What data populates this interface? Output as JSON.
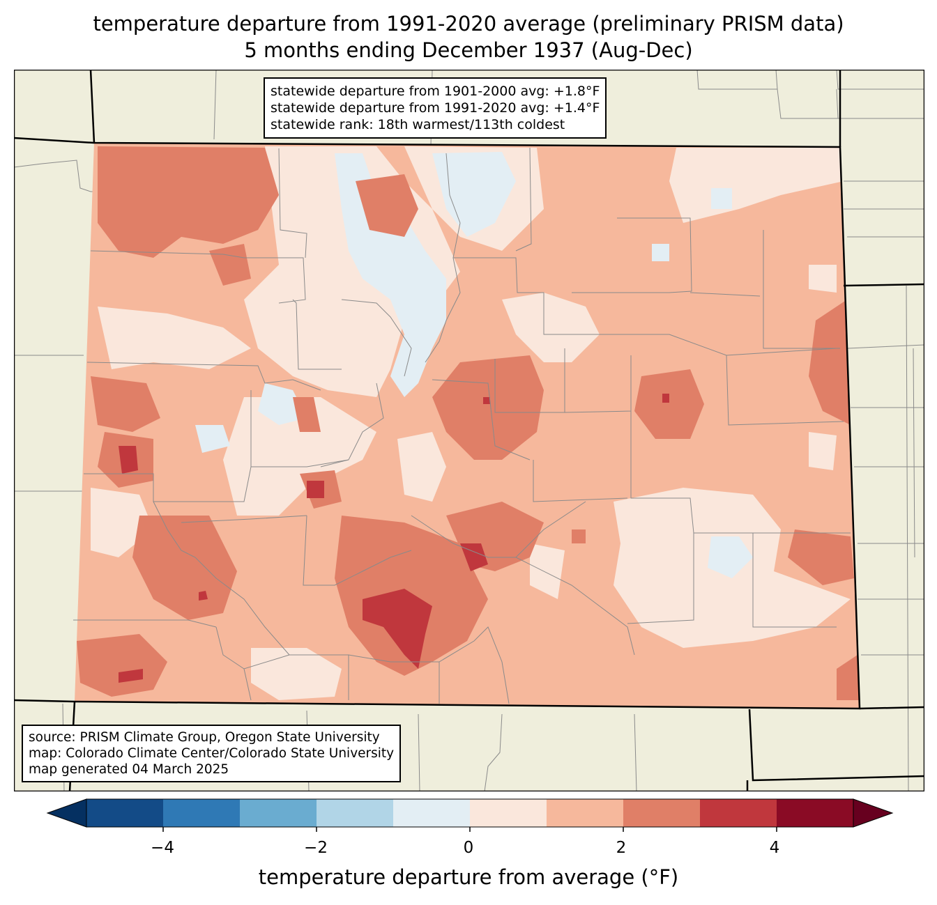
{
  "title_line1": "temperature departure from 1991-2020 average (preliminary PRISM data)",
  "title_line2": "5 months ending December 1937 (Aug-Dec)",
  "stats": {
    "line1": "statewide departure from 1901-2000 avg: +1.8°F",
    "line2": "statewide departure from 1991-2020 avg: +1.4°F",
    "line3": "statewide rank: 18th warmest/113th coldest"
  },
  "source": {
    "line1": "source: PRISM Climate Group, Oregon State University",
    "line2": "map: Colorado Climate Center/Colorado State University",
    "line3": "map generated 04 March 2025"
  },
  "colorbar": {
    "label": "temperature departure from average (°F)",
    "ticks": [
      "−4",
      "−2",
      "0",
      "2",
      "4"
    ],
    "bins": [
      {
        "range": "<-5",
        "color": "#053061"
      },
      {
        "range": "-5 to -4",
        "color": "#134b87"
      },
      {
        "range": "-4 to -3",
        "color": "#2f79b5"
      },
      {
        "range": "-3 to -2",
        "color": "#6aacd0"
      },
      {
        "range": "-2 to -1",
        "color": "#b1d5e7"
      },
      {
        "range": "-1 to 0",
        "color": "#e3eef4"
      },
      {
        "range": "0 to 1",
        "color": "#fae7dc"
      },
      {
        "range": "1 to 2",
        "color": "#f6b89c"
      },
      {
        "range": "2 to 3",
        "color": "#e07f67"
      },
      {
        "range": "3 to 4",
        "color": "#c0373d"
      },
      {
        "range": "4 to 5",
        "color": "#8a0b25"
      },
      {
        "range": ">5",
        "color": "#67001f"
      }
    ]
  },
  "map_colors": {
    "land_outside": "#efeedc",
    "county_lines": "#8a8a8a",
    "state_lines": "#000000"
  }
}
